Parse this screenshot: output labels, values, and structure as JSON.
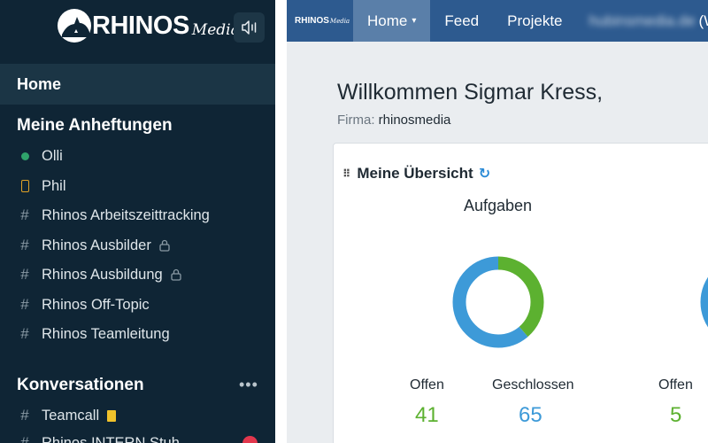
{
  "brand": {
    "name": "RHINOS",
    "sub": "Media"
  },
  "sidebar": {
    "home": "Home",
    "pins_title": "Meine Anheftungen",
    "pins": [
      {
        "label": "Olli",
        "icon": "status-dot-icon"
      },
      {
        "label": "Phil",
        "icon": "phone-icon"
      },
      {
        "label": "Rhinos Arbeitszeittracking",
        "icon": "hash-icon"
      },
      {
        "label": "Rhinos Ausbilder",
        "icon": "hash-icon",
        "locked": true
      },
      {
        "label": "Rhinos Ausbildung",
        "icon": "hash-icon",
        "locked": true
      },
      {
        "label": "Rhinos Off-Topic",
        "icon": "hash-icon"
      },
      {
        "label": "Rhinos Teamleitung",
        "icon": "hash-icon"
      }
    ],
    "conversations_title": "Konversationen",
    "more": "•••",
    "conversations": [
      {
        "label": "Teamcall",
        "icon": "hash-icon"
      },
      {
        "label": "Rhinos INTERN Stuh",
        "icon": "hash-icon"
      }
    ]
  },
  "navbar": {
    "logo": "RHINOS",
    "logo_sub": "Media",
    "items": [
      "Home",
      "Feed",
      "Projekte"
    ],
    "home_caret": "▾",
    "blurred": "hubinsmedia.de",
    "trailing": "(W"
  },
  "main": {
    "welcome": "Willkommen Sigmar Kress,",
    "firma_label": "Firma:",
    "firma_value": "rhinosmedia",
    "overview_title": "Meine Übersicht",
    "chart_title": "Aufgaben",
    "stats": [
      {
        "label": "Offen",
        "value": "41"
      },
      {
        "label": "Geschlossen",
        "value": "65"
      },
      {
        "label": "Offen",
        "value": "5"
      }
    ]
  },
  "chart_data": {
    "type": "pie",
    "title": "Aufgaben",
    "categories": [
      "Offen",
      "Geschlossen"
    ],
    "values": [
      41,
      65
    ],
    "colors": [
      "#5cb130",
      "#3d9ad8"
    ]
  },
  "colors": {
    "sidebar_bg": "#0f2535",
    "navbar_bg": "#2d5a8f",
    "accent_green": "#5cb130",
    "accent_blue": "#3d9ad8"
  }
}
